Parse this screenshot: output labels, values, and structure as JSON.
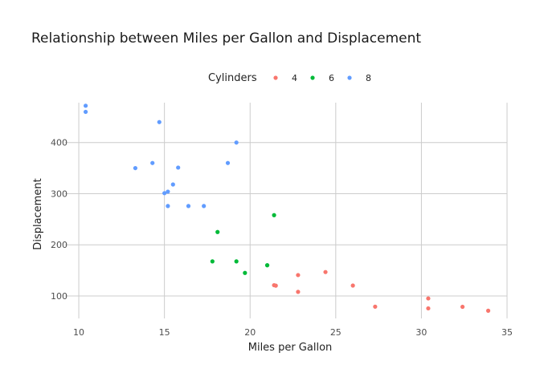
{
  "chart_data": {
    "type": "scatter",
    "title": "Relationship between Miles per Gallon and Displacement",
    "xlabel": "Miles per Gallon",
    "ylabel": "Displacement",
    "xlim": [
      9.2,
      35.0
    ],
    "ylim": [
      56,
      478
    ],
    "xticks": [
      10,
      15,
      20,
      25,
      30,
      35
    ],
    "yticks": [
      100,
      200,
      300,
      400
    ],
    "grid": true,
    "legend": {
      "title": "Cylinders",
      "position": "top"
    },
    "series": [
      {
        "name": "4",
        "color": "#f8766d",
        "points": [
          [
            22.8,
            108
          ],
          [
            24.4,
            146.7
          ],
          [
            22.8,
            140.8
          ],
          [
            32.4,
            78.7
          ],
          [
            30.4,
            75.7
          ],
          [
            33.9,
            71.1
          ],
          [
            21.5,
            120.1
          ],
          [
            27.3,
            79
          ],
          [
            26.0,
            120.3
          ],
          [
            30.4,
            95.1
          ],
          [
            21.4,
            121
          ]
        ]
      },
      {
        "name": "6",
        "color": "#00ba38",
        "points": [
          [
            21.0,
            160
          ],
          [
            21.0,
            160
          ],
          [
            21.4,
            258
          ],
          [
            18.1,
            225
          ],
          [
            19.2,
            167.6
          ],
          [
            17.8,
            167.6
          ],
          [
            19.7,
            145
          ]
        ]
      },
      {
        "name": "8",
        "color": "#619cff",
        "points": [
          [
            18.7,
            360
          ],
          [
            14.3,
            360
          ],
          [
            16.4,
            275.8
          ],
          [
            17.3,
            275.8
          ],
          [
            15.2,
            275.8
          ],
          [
            10.4,
            472
          ],
          [
            10.4,
            460
          ],
          [
            14.7,
            440
          ],
          [
            15.5,
            318
          ],
          [
            15.2,
            304
          ],
          [
            13.3,
            350
          ],
          [
            19.2,
            400
          ],
          [
            15.8,
            351
          ],
          [
            15.0,
            301
          ]
        ]
      }
    ]
  }
}
